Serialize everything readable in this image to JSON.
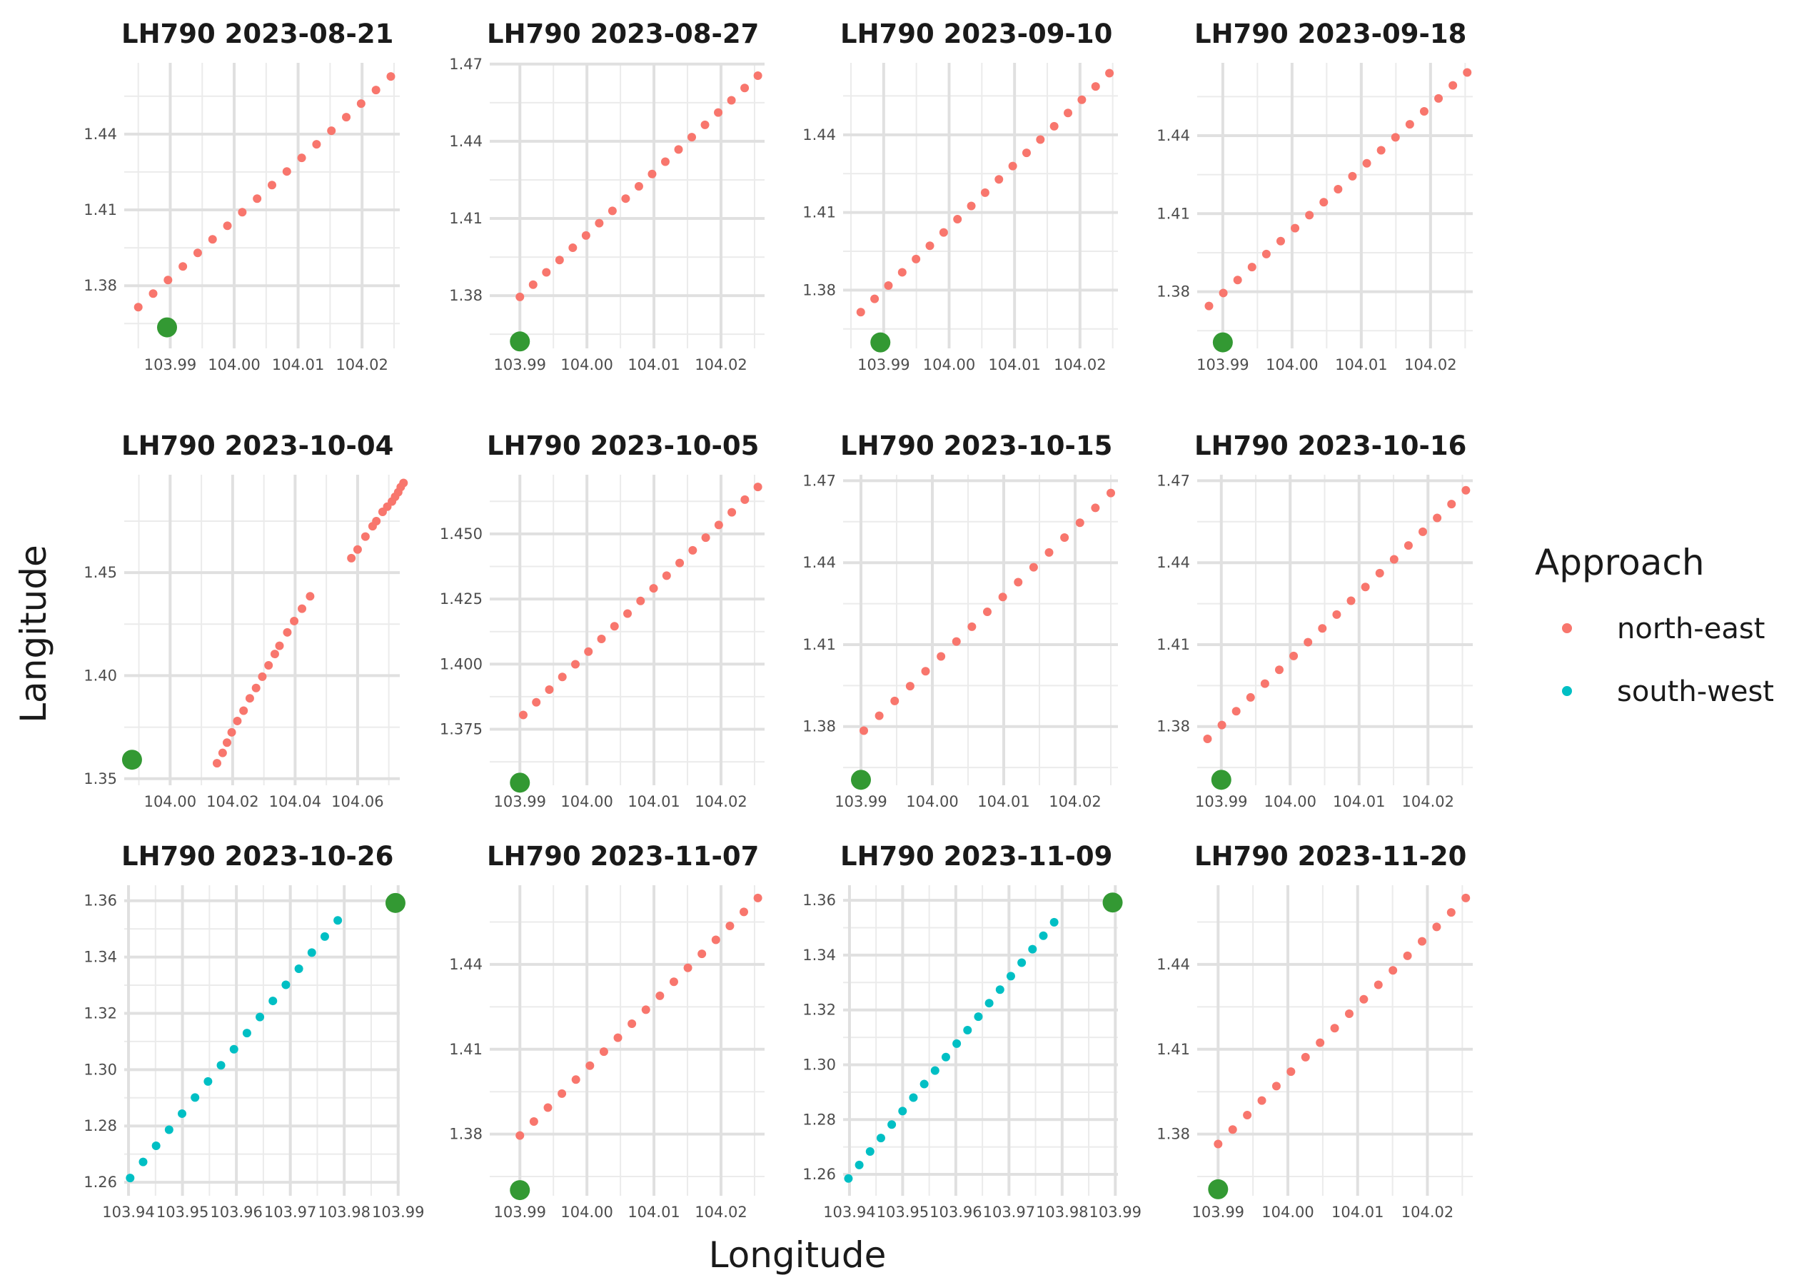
{
  "chart_data": {
    "type": "scatter",
    "xlabel": "Longitude",
    "ylabel": "Langitude",
    "legend": {
      "title": "Approach",
      "position": "right",
      "entries": [
        {
          "label": "north-east",
          "color": "#F8766D"
        },
        {
          "label": "south-west",
          "color": "#00BFC4"
        }
      ]
    },
    "airport_marker_color": "#339933",
    "grid": true,
    "panels": [
      {
        "title": "LH790 2023-08-21",
        "approach": "north-east",
        "xlim": [
          103.9828,
          104.0259
        ],
        "ylim": [
          1.3552,
          1.4682
        ],
        "xticks": [
          103.99,
          104.0,
          104.01,
          104.02
        ],
        "yticks": [
          1.38,
          1.41,
          1.44
        ],
        "x_first": 103.985,
        "y_first": 1.3715,
        "x_last": 104.0245,
        "y_last": 1.4628,
        "n": 18,
        "airport": [
          103.9895,
          1.3635
        ]
      },
      {
        "title": "LH790 2023-08-27",
        "approach": "north-east",
        "xlim": [
          103.9855,
          104.0265
        ],
        "ylim": [
          1.3595,
          1.4705
        ],
        "xticks": [
          103.99,
          104.0,
          104.01,
          104.02
        ],
        "yticks": [
          1.38,
          1.41,
          1.44,
          1.47
        ],
        "x_first": 103.99,
        "y_first": 1.3795,
        "x_last": 104.0255,
        "y_last": 1.4655,
        "n": 19,
        "airport": [
          103.99,
          1.3622
        ]
      },
      {
        "title": "LH790 2023-09-10",
        "approach": "north-east",
        "xlim": [
          103.9838,
          104.0258
        ],
        "ylim": [
          1.3575,
          1.4678
        ],
        "xticks": [
          103.99,
          104.0,
          104.01,
          104.02
        ],
        "yticks": [
          1.38,
          1.41,
          1.44
        ],
        "x_first": 103.9865,
        "y_first": 1.3715,
        "x_last": 104.0245,
        "y_last": 1.4638,
        "n": 19,
        "airport": [
          103.9895,
          1.3598
        ]
      },
      {
        "title": "LH790 2023-09-18",
        "approach": "north-east",
        "xlim": [
          103.9863,
          104.0261
        ],
        "ylim": [
          1.3582,
          1.468
        ],
        "xticks": [
          103.99,
          104.0,
          104.01,
          104.02
        ],
        "yticks": [
          1.38,
          1.41,
          1.44
        ],
        "x_first": 103.988,
        "y_first": 1.3745,
        "x_last": 104.0253,
        "y_last": 1.4643,
        "n": 19,
        "airport": [
          103.99,
          1.3605
        ]
      },
      {
        "title": "LH790 2023-10-04",
        "approach": "north-east",
        "xlim": [
          103.9853,
          104.0735
        ],
        "ylim": [
          1.3468,
          1.4975
        ],
        "xticks": [
          104.0,
          104.02,
          104.04,
          104.06
        ],
        "yticks": [
          1.35,
          1.4,
          1.45
        ],
        "points": [
          [
            104.015,
            1.3575
          ],
          [
            104.0168,
            1.3625
          ],
          [
            104.0182,
            1.3675
          ],
          [
            104.0197,
            1.3725
          ],
          [
            104.0215,
            1.378
          ],
          [
            104.0235,
            1.383
          ],
          [
            104.0255,
            1.389
          ],
          [
            104.0275,
            1.394
          ],
          [
            104.0295,
            1.3995
          ],
          [
            104.0315,
            1.405
          ],
          [
            104.0335,
            1.4105
          ],
          [
            104.035,
            1.4145
          ],
          [
            104.0375,
            1.421
          ],
          [
            104.0397,
            1.4265
          ],
          [
            104.0422,
            1.4325
          ],
          [
            104.0448,
            1.4385
          ],
          [
            104.058,
            1.457
          ],
          [
            104.06,
            1.4612
          ],
          [
            104.0625,
            1.4675
          ],
          [
            104.0648,
            1.4725
          ],
          [
            104.066,
            1.475
          ],
          [
            104.068,
            1.4795
          ],
          [
            104.0695,
            1.482
          ],
          [
            104.071,
            1.4845
          ],
          [
            104.072,
            1.4868
          ],
          [
            104.073,
            1.489
          ],
          [
            104.0738,
            1.4915
          ],
          [
            104.0747,
            1.4935
          ]
        ],
        "airport": [
          103.9878,
          1.3592
        ]
      },
      {
        "title": "LH790 2023-10-05",
        "approach": "north-east",
        "xlim": [
          103.9855,
          104.0265
        ],
        "ylim": [
          1.3535,
          1.4727
        ],
        "xticks": [
          103.99,
          104.0,
          104.01,
          104.02
        ],
        "yticks": [
          1.375,
          1.4,
          1.425,
          1.45
        ],
        "x_first": 103.9905,
        "y_first": 1.3805,
        "x_last": 104.0255,
        "y_last": 1.468,
        "n": 19,
        "airport": [
          103.99,
          1.3545
        ]
      },
      {
        "title": "LH790 2023-10-15",
        "approach": "north-east",
        "xlim": [
          103.9875,
          104.026
        ],
        "ylim": [
          1.3585,
          1.4722
        ],
        "xticks": [
          103.99,
          104.0,
          104.01,
          104.02
        ],
        "yticks": [
          1.38,
          1.41,
          1.44,
          1.47
        ],
        "x_first": 103.9904,
        "y_first": 1.3785,
        "x_last": 104.025,
        "y_last": 1.4655,
        "n": 17,
        "airport": [
          103.99,
          1.3605
        ]
      },
      {
        "title": "LH790 2023-10-16",
        "approach": "north-east",
        "xlim": [
          103.9865,
          104.0265
        ],
        "ylim": [
          1.3585,
          1.4722
        ],
        "xticks": [
          103.99,
          104.0,
          104.01,
          104.02
        ],
        "yticks": [
          1.38,
          1.41,
          1.44,
          1.47
        ],
        "x_first": 103.988,
        "y_first": 1.3755,
        "x_last": 104.0255,
        "y_last": 1.4665,
        "n": 19,
        "airport": [
          103.99,
          1.3605
        ]
      },
      {
        "title": "LH790 2023-10-26",
        "approach": "south-west",
        "xlim": [
          103.9392,
          103.9903
        ],
        "ylim": [
          1.2552,
          1.3655
        ],
        "xticks": [
          103.94,
          103.95,
          103.96,
          103.97,
          103.98,
          103.99
        ],
        "yticks": [
          1.26,
          1.28,
          1.3,
          1.32,
          1.34,
          1.36
        ],
        "x_first": 103.9403,
        "y_first": 1.2615,
        "x_last": 103.9788,
        "y_last": 1.353,
        "n": 17,
        "airport": [
          103.9895,
          1.3592
        ]
      },
      {
        "title": "LH790 2023-11-07",
        "approach": "north-east",
        "xlim": [
          103.9855,
          104.0265
        ],
        "ylim": [
          1.3582,
          1.468
        ],
        "xticks": [
          103.99,
          104.0,
          104.01,
          104.02
        ],
        "yticks": [
          1.38,
          1.41,
          1.44
        ],
        "x_first": 103.99,
        "y_first": 1.3795,
        "x_last": 104.0255,
        "y_last": 1.4635,
        "n": 18,
        "airport": [
          103.99,
          1.3602
        ]
      },
      {
        "title": "LH790 2023-11-09",
        "approach": "south-west",
        "xlim": [
          103.9388,
          103.9905
        ],
        "ylim": [
          1.2522,
          1.3655
        ],
        "xticks": [
          103.94,
          103.95,
          103.96,
          103.97,
          103.98,
          103.99
        ],
        "yticks": [
          1.26,
          1.28,
          1.3,
          1.32,
          1.34,
          1.36
        ],
        "x_first": 103.9398,
        "y_first": 1.2585,
        "x_last": 103.9785,
        "y_last": 1.352,
        "n": 20,
        "airport": [
          103.9895,
          1.3592
        ]
      },
      {
        "title": "LH790 2023-11-20",
        "approach": "north-east",
        "xlim": [
          103.987,
          104.0265
        ],
        "ylim": [
          1.3582,
          1.468
        ],
        "xticks": [
          103.99,
          104.0,
          104.01,
          104.02
        ],
        "yticks": [
          1.38,
          1.41,
          1.44
        ],
        "x_first": 103.99,
        "y_first": 1.3765,
        "x_last": 104.0255,
        "y_last": 1.4635,
        "n": 18,
        "airport": [
          103.99,
          1.3605
        ]
      }
    ]
  }
}
